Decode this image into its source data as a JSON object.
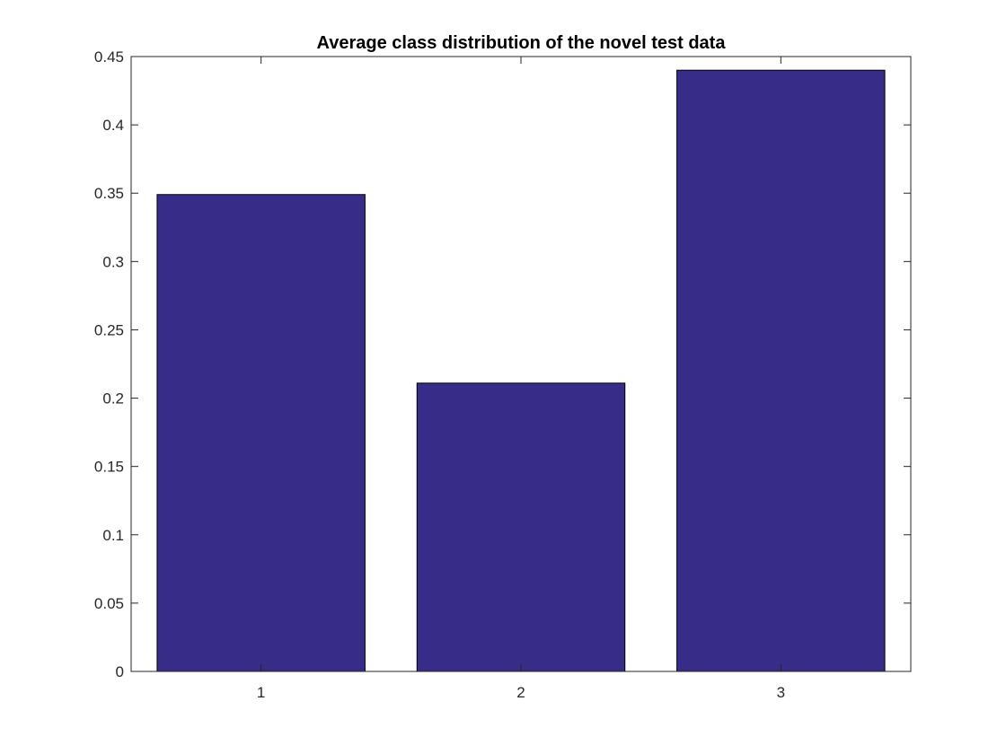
{
  "chart_data": {
    "type": "bar",
    "title": "Average class distribution of the novel test data",
    "xlabel": "",
    "ylabel": "",
    "categories": [
      "1",
      "2",
      "3"
    ],
    "series": [
      {
        "values": [
          0.349,
          0.211,
          0.44
        ]
      }
    ],
    "ylim": [
      0,
      0.45
    ],
    "yticks": [
      "0",
      "0.05",
      "0.1",
      "0.15",
      "0.2",
      "0.25",
      "0.3",
      "0.35",
      "0.4",
      "0.45"
    ],
    "bar_color": "#372c87",
    "grid": false,
    "legend": "none"
  }
}
